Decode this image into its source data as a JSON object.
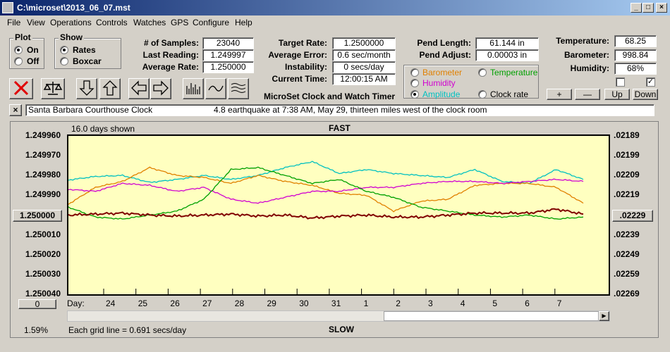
{
  "window": {
    "title": "C:\\microset\\2013_06_07.mst"
  },
  "menu": [
    "File",
    "View",
    "Operations",
    "Controls",
    "Watches",
    "GPS",
    "Configure",
    "Help"
  ],
  "plot_group": {
    "title": "Plot",
    "on": "On",
    "off": "Off"
  },
  "show_group": {
    "title": "Show",
    "rates": "Rates",
    "boxcar": "Boxcar"
  },
  "stats": {
    "samples_label": "# of Samples:",
    "samples": "23040",
    "last_label": "Last Reading:",
    "last": "1.249997",
    "avg_label": "Average Rate:",
    "avg": "1.250000"
  },
  "targets": {
    "target_label": "Target Rate:",
    "target": "1.2500000",
    "error_label": "Average Error:",
    "error": "0.6 sec/month",
    "instab_label": "Instability:",
    "instab": "0 secs/day",
    "time_label": "Current Time:",
    "time": "12:00:15 AM"
  },
  "pend": {
    "length_label": "Pend Length:",
    "length": "61.144 in",
    "adjust_label": "Pend Adjust:",
    "adjust": "0.00003 in"
  },
  "env": {
    "temp_label": "Temperature:",
    "temp": "68.25",
    "baro_label": "Barometer:",
    "baro": "998.84",
    "hum_label": "Humidity:",
    "hum": "68%"
  },
  "traces": {
    "barometer": "Barometer",
    "temperature": "Temperature",
    "humidity": "Humidity",
    "amplitude": "Amplitude",
    "clock_rate": "Clock rate",
    "colors": {
      "barometer": "#e08000",
      "temperature": "#00a000",
      "humidity": "#d000d0",
      "amplitude": "#00c0c0",
      "clock_rate": "#800000"
    }
  },
  "buttons": {
    "plus": "+",
    "minus": "—",
    "up": "Up",
    "down": "Down"
  },
  "app_title": "MicroSet Clock and Watch Timer",
  "note": {
    "clock": "Santa Barbara Courthouse Clock",
    "text": "4.8 earthquake at 7:38 AM, May 29, thirteen miles west of the clock room"
  },
  "chart_header": {
    "days_shown": "16.0 days shown",
    "fast": "FAST",
    "slow": "SLOW",
    "grid": "Each grid line = 0.691 secs/day",
    "percent": "1.59%",
    "zero_btn": "0",
    "day_label": "Day:"
  },
  "chart_data": {
    "type": "line",
    "y_left_ticks": [
      "1.249960",
      "1.249970",
      "1.249980",
      "1.249990",
      "1.250000",
      "1.250010",
      "1.250020",
      "1.250030",
      "1.250040"
    ],
    "y_right_ticks": [
      ".02189",
      ".02199",
      ".02209",
      ".02219",
      ".02229",
      ".02239",
      ".02249",
      ".02259",
      ".02269"
    ],
    "x_ticks": [
      "24",
      "25",
      "26",
      "27",
      "28",
      "29",
      "30",
      "31",
      "1",
      "2",
      "3",
      "4",
      "5",
      "6",
      "7"
    ],
    "highlighted_left": "1.250000",
    "highlighted_right": ".02229",
    "series": [
      {
        "key": "amplitude",
        "values": [
          1.2499823,
          1.2499805,
          1.24998,
          1.2499835,
          1.249982,
          1.24998,
          1.249982,
          1.24998,
          1.249976,
          1.249973,
          1.249979,
          1.249977,
          1.249979,
          1.24998,
          1.249981,
          1.249977,
          1.249983,
          1.249984,
          1.249977,
          1.249982
        ]
      },
      {
        "key": "barometer",
        "values": [
          1.2499945,
          1.249986,
          1.249983,
          1.249976,
          1.24998,
          1.249981,
          1.249984,
          1.24998,
          1.249983,
          1.249985,
          1.249989,
          1.24999,
          1.249998,
          1.249993,
          1.249992,
          1.249985,
          1.249984,
          1.249984,
          1.249986,
          1.249994
        ]
      },
      {
        "key": "humidity",
        "values": [
          1.249987,
          1.249988,
          1.249984,
          1.249985,
          1.249988,
          1.249986,
          1.249992,
          1.249994,
          1.249991,
          1.249988,
          1.249988,
          1.249986,
          1.249986,
          1.249984,
          1.249983,
          1.249983,
          1.249984,
          1.249983,
          1.249982,
          1.249983
        ]
      },
      {
        "key": "temperature",
        "values": [
          1.249996,
          1.250001,
          1.250002,
          1.25,
          1.249998,
          1.249992,
          1.249977,
          1.249976,
          1.24998,
          1.249984,
          1.249982,
          1.249988,
          1.249991,
          1.249996,
          1.249998,
          1.25,
          1.250001,
          1.25,
          1.250002,
          1.250001
        ]
      },
      {
        "key": "clock_rate",
        "values": [
          1.25,
          1.2499995,
          1.249999,
          1.25,
          1.2500005,
          1.25,
          1.2499995,
          1.2500005,
          1.25,
          1.2500015,
          1.2500005,
          1.25,
          1.250001,
          1.250001,
          1.25,
          1.249999,
          1.249999,
          1.249999,
          1.249997,
          1.2499995
        ]
      }
    ],
    "ylim": [
      1.24996,
      1.25004
    ],
    "grid": false
  }
}
